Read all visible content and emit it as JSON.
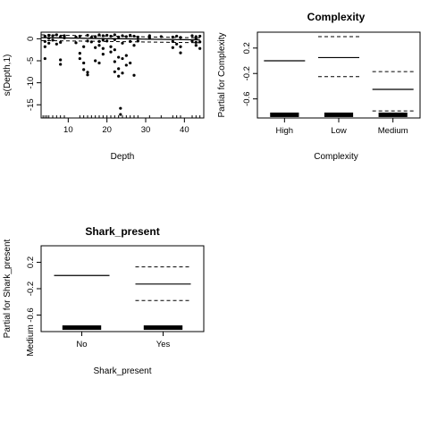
{
  "chart_data": [
    {
      "type": "line",
      "title": "",
      "xlabel": "Depth",
      "ylabel": "s(Depth,1)",
      "xlim": [
        3,
        45
      ],
      "ylim": [
        -18,
        1.5
      ],
      "x_ticks": [
        10,
        20,
        30,
        40
      ],
      "y_ticks": [
        0,
        -5,
        -10,
        -15
      ],
      "fit": {
        "x": [
          3,
          44
        ],
        "y": [
          0.25,
          -0.25
        ]
      },
      "se_upper": {
        "x": [
          3,
          44
        ],
        "y": [
          0.9,
          0.2
        ]
      },
      "se_lower": {
        "x": [
          3,
          44
        ],
        "y": [
          -0.4,
          -0.9
        ]
      },
      "residuals": [
        {
          "x": 4,
          "y": 0.6
        },
        {
          "x": 4,
          "y": -0.6
        },
        {
          "x": 4,
          "y": -1.8
        },
        {
          "x": 4,
          "y": -4.5
        },
        {
          "x": 5,
          "y": 0.8
        },
        {
          "x": 5,
          "y": 0.1
        },
        {
          "x": 5,
          "y": -1.0
        },
        {
          "x": 6,
          "y": 0.7
        },
        {
          "x": 6,
          "y": -0.3
        },
        {
          "x": 7,
          "y": 0.9
        },
        {
          "x": 7,
          "y": -1.2
        },
        {
          "x": 8,
          "y": 0.5
        },
        {
          "x": 8,
          "y": -0.8
        },
        {
          "x": 8,
          "y": -4.8
        },
        {
          "x": 8,
          "y": -5.8
        },
        {
          "x": 9,
          "y": 0.7
        },
        {
          "x": 9,
          "y": 0.2
        },
        {
          "x": 12,
          "y": 0.4
        },
        {
          "x": 12,
          "y": -0.9
        },
        {
          "x": 13,
          "y": 0.6
        },
        {
          "x": 13,
          "y": -3.3
        },
        {
          "x": 13,
          "y": -4.5
        },
        {
          "x": 14,
          "y": -1.8
        },
        {
          "x": 14,
          "y": -5.5
        },
        {
          "x": 14,
          "y": -7.0
        },
        {
          "x": 15,
          "y": 0.8
        },
        {
          "x": 15,
          "y": -0.5
        },
        {
          "x": 15,
          "y": -7.6
        },
        {
          "x": 15,
          "y": -8.2
        },
        {
          "x": 16,
          "y": 0.3
        },
        {
          "x": 16,
          "y": -0.7
        },
        {
          "x": 17,
          "y": 0.5
        },
        {
          "x": 17,
          "y": -2.0
        },
        {
          "x": 17,
          "y": -5.0
        },
        {
          "x": 18,
          "y": 0.9
        },
        {
          "x": 18,
          "y": -0.6
        },
        {
          "x": 18,
          "y": -1.5
        },
        {
          "x": 18,
          "y": -5.5
        },
        {
          "x": 19,
          "y": 0.7
        },
        {
          "x": 19,
          "y": -0.3
        },
        {
          "x": 19,
          "y": -2.2
        },
        {
          "x": 19,
          "y": -3.5
        },
        {
          "x": 20,
          "y": 0.8
        },
        {
          "x": 20,
          "y": -0.5
        },
        {
          "x": 21,
          "y": 0.6
        },
        {
          "x": 21,
          "y": -1.8
        },
        {
          "x": 21,
          "y": -3.0
        },
        {
          "x": 22,
          "y": 0.9
        },
        {
          "x": 22,
          "y": -0.2
        },
        {
          "x": 22,
          "y": -2.5
        },
        {
          "x": 22,
          "y": -5.2
        },
        {
          "x": 22,
          "y": -7.5
        },
        {
          "x": 23,
          "y": 0.4
        },
        {
          "x": 23,
          "y": -4.2
        },
        {
          "x": 23,
          "y": -6.8
        },
        {
          "x": 23,
          "y": -8.5
        },
        {
          "x": 23.5,
          "y": -15.8
        },
        {
          "x": 23.5,
          "y": -17.2
        },
        {
          "x": 24,
          "y": 0.7
        },
        {
          "x": 24,
          "y": -1.0
        },
        {
          "x": 24,
          "y": -4.5
        },
        {
          "x": 24,
          "y": -7.8
        },
        {
          "x": 25,
          "y": 0.5
        },
        {
          "x": 25,
          "y": -3.8
        },
        {
          "x": 25,
          "y": -6.0
        },
        {
          "x": 26,
          "y": 0.8
        },
        {
          "x": 26,
          "y": -0.6
        },
        {
          "x": 26,
          "y": -5.5
        },
        {
          "x": 27,
          "y": 0.6
        },
        {
          "x": 27,
          "y": -1.5
        },
        {
          "x": 27,
          "y": -8.3
        },
        {
          "x": 28,
          "y": 0.4
        },
        {
          "x": 28,
          "y": -0.5
        },
        {
          "x": 31,
          "y": 0.7
        },
        {
          "x": 31,
          "y": 0.1
        },
        {
          "x": 34,
          "y": 0.5
        },
        {
          "x": 37,
          "y": 0.4
        },
        {
          "x": 37,
          "y": -0.6
        },
        {
          "x": 37,
          "y": -2.0
        },
        {
          "x": 38,
          "y": 0.6
        },
        {
          "x": 38,
          "y": -1.2
        },
        {
          "x": 39,
          "y": 0.3
        },
        {
          "x": 39,
          "y": -1.8
        },
        {
          "x": 39,
          "y": -3.2
        },
        {
          "x": 42,
          "y": 0.7
        },
        {
          "x": 42,
          "y": -0.5
        },
        {
          "x": 43,
          "y": 0.5
        },
        {
          "x": 43,
          "y": 0.0
        },
        {
          "x": 43,
          "y": -0.8
        },
        {
          "x": 43,
          "y": -1.5
        },
        {
          "x": 44,
          "y": 0.6
        },
        {
          "x": 44,
          "y": -0.7
        },
        {
          "x": 44,
          "y": -2.2
        }
      ],
      "rug_x": [
        3.5,
        4,
        4.5,
        5,
        6,
        7,
        8,
        9,
        13,
        14,
        15,
        16,
        17,
        18,
        19,
        20,
        21,
        22,
        23,
        24,
        25,
        26,
        27,
        28,
        31,
        34,
        37,
        38,
        39,
        42,
        43,
        44
      ]
    },
    {
      "type": "termplot",
      "title": "Complexity",
      "xlabel": "Complexity",
      "ylabel": "Partial for Complexity",
      "categories": [
        "High",
        "Low",
        "Medium"
      ],
      "ylim": [
        -0.9,
        0.45
      ],
      "y_ticks": [
        0.2,
        -0.2,
        -0.6
      ],
      "y_tick_labels": [
        "0.2",
        "-0.2",
        "-0.6"
      ],
      "fit": [
        0.0,
        0.05,
        -0.45
      ],
      "upper": [
        0.0,
        0.38,
        -0.17
      ],
      "lower": [
        0.0,
        -0.25,
        -0.79
      ],
      "rug_y": -0.85
    },
    {
      "type": "termplot",
      "title": "Shark_present",
      "xlabel": "Shark_present",
      "ylabel": "Partial for Shark_present",
      "categories": [
        "No",
        "Yes"
      ],
      "ylim": [
        -0.85,
        0.45
      ],
      "y_ticks": [
        0.2,
        -0.2,
        -0.6
      ],
      "y_tick_labels": [
        "0.2",
        "-0.2",
        "-0.6"
      ],
      "fit": [
        0.0,
        -0.13
      ],
      "upper": [
        0.0,
        0.13
      ],
      "lower": [
        0.0,
        -0.38
      ],
      "rug_y": -0.79,
      "stray_label": "Medium"
    }
  ]
}
